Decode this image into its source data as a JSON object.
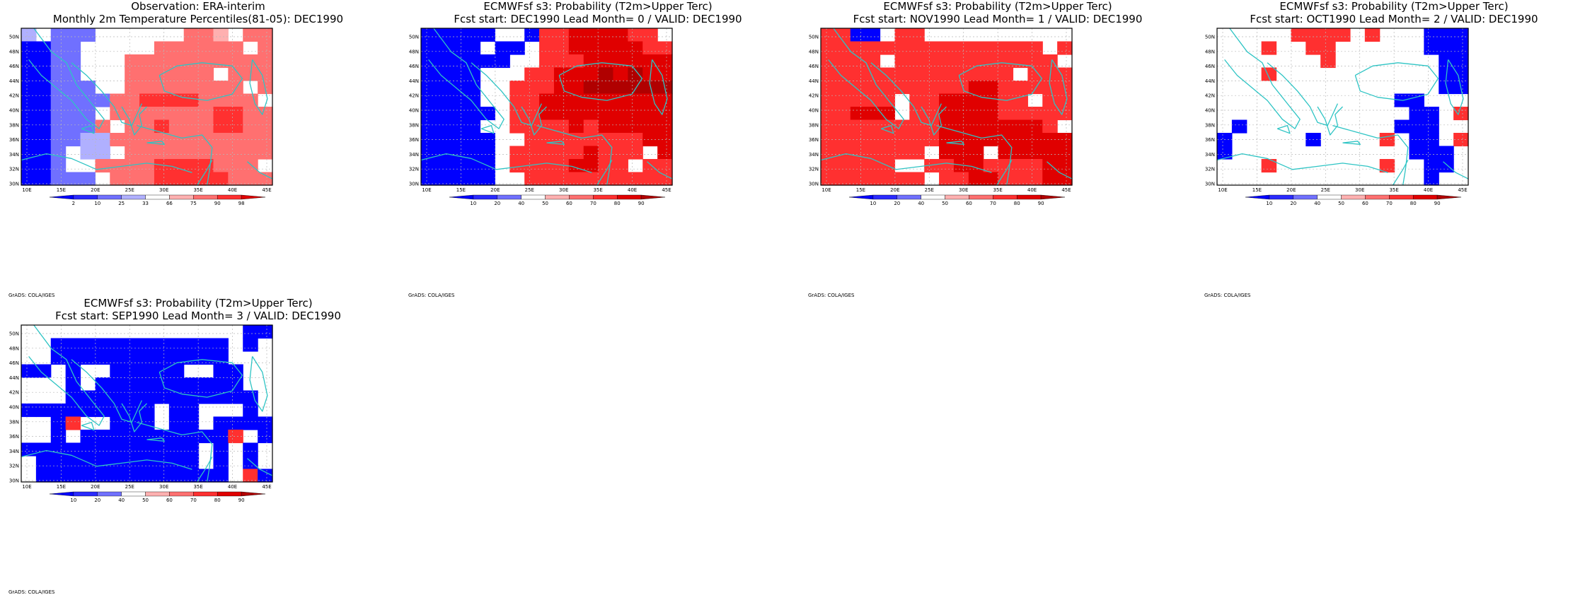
{
  "lon_ticks": [
    "10E",
    "15E",
    "20E",
    "25E",
    "30E",
    "35E",
    "40E",
    "45E"
  ],
  "lat_ticks": [
    "30N",
    "32N",
    "34N",
    "36N",
    "38N",
    "40N",
    "42N",
    "44N",
    "46N",
    "48N",
    "50N"
  ],
  "credit": "GrADS: COLA/IGES",
  "colors": {
    "coast": "#2ec4c4",
    "grid": "#b8b8b8"
  },
  "chart_data": [
    {
      "type": "heatmap",
      "title": "Observation: ERA-interim",
      "subtitle": "Monthly 2m Temperature Percentiles(81-05): DEC1990",
      "x_range": [
        8.5,
        46
      ],
      "y_range": [
        29.5,
        51.5
      ],
      "cell_deg": 2.5,
      "grid": true,
      "legend": {
        "placement": "bottom",
        "labels": [
          "2",
          "10",
          "25",
          "33",
          "66",
          "75",
          "90",
          "98"
        ],
        "colors": [
          "#0000ff",
          "#2b2bff",
          "#7070ff",
          "#b0b0ff",
          "#ffffff",
          "#ffb0b0",
          "#ff7070",
          "#ff3030",
          "#e00000"
        ]
      },
      "cells": [
        "3X022000000000",
        "2222000000000",
        "2200000123000",
        "222000000000",
        "2222222223300",
        "222222222223",
        "4300222221222",
        "4300222222222",
        "4322222222222",
        "4322222222222",
        "430020322232",
        "4322222222222",
        "4322222222222",
        "2222222222222"
      ]
    },
    {
      "type": "heatmap",
      "title": "ECMWFsf s3: Probability (T2m>Upper Terc)",
      "subtitle": "Fcst start: DEC1990   Lead Month= 0 / VALID: DEC1990",
      "x_range": [
        8.5,
        46
      ],
      "y_range": [
        29.5,
        51.5
      ],
      "cell_deg": 2.5,
      "grid": true,
      "legend": {
        "placement": "bottom",
        "labels": [
          "10",
          "20",
          "40",
          "50",
          "60",
          "70",
          "80",
          "90"
        ],
        "colors": [
          "#0000ff",
          "#2b2bff",
          "#7070ff",
          "#ffffff",
          "#ffb0b0",
          "#ff7070",
          "#ff3030",
          "#e00000",
          "#b00000"
        ]
      }
    },
    {
      "type": "heatmap",
      "title": "ECMWFsf s3: Probability (T2m>Upper Terc)",
      "subtitle": "Fcst start: NOV1990   Lead Month= 1 / VALID: DEC1990",
      "x_range": [
        8.5,
        46
      ],
      "y_range": [
        29.5,
        51.5
      ],
      "cell_deg": 2.5,
      "grid": true,
      "legend": {
        "placement": "bottom",
        "labels": [
          "10",
          "20",
          "40",
          "50",
          "60",
          "70",
          "80",
          "90"
        ],
        "colors": [
          "#0000ff",
          "#2b2bff",
          "#7070ff",
          "#ffffff",
          "#ffb0b0",
          "#ff7070",
          "#ff3030",
          "#e00000",
          "#b00000"
        ]
      }
    },
    {
      "type": "heatmap",
      "title": "ECMWFsf s3: Probability (T2m>Upper Terc)",
      "subtitle": "Fcst start: OCT1990   Lead Month= 2 / VALID: DEC1990",
      "x_range": [
        8.5,
        46
      ],
      "y_range": [
        29.5,
        51.5
      ],
      "cell_deg": 2.5,
      "grid": true,
      "legend": {
        "placement": "bottom",
        "labels": [
          "10",
          "20",
          "40",
          "50",
          "60",
          "70",
          "80",
          "90"
        ],
        "colors": [
          "#0000ff",
          "#2b2bff",
          "#7070ff",
          "#ffffff",
          "#ffb0b0",
          "#ff7070",
          "#ff3030",
          "#e00000",
          "#b00000"
        ]
      }
    },
    {
      "type": "heatmap",
      "title": "ECMWFsf s3: Probability (T2m>Upper Terc)",
      "subtitle": "Fcst start: SEP1990   Lead Month= 3 / VALID: DEC1990",
      "x_range": [
        8.5,
        46
      ],
      "y_range": [
        29.5,
        51.5
      ],
      "cell_deg": 2.5,
      "grid": true,
      "legend": {
        "placement": "bottom",
        "labels": [
          "10",
          "20",
          "40",
          "50",
          "60",
          "70",
          "80",
          "90"
        ],
        "colors": [
          "#0000ff",
          "#2b2bff",
          "#7070ff",
          "#ffffff",
          "#ffb0b0",
          "#ff7070",
          "#ff3030",
          "#e00000",
          "#b00000"
        ]
      }
    }
  ]
}
